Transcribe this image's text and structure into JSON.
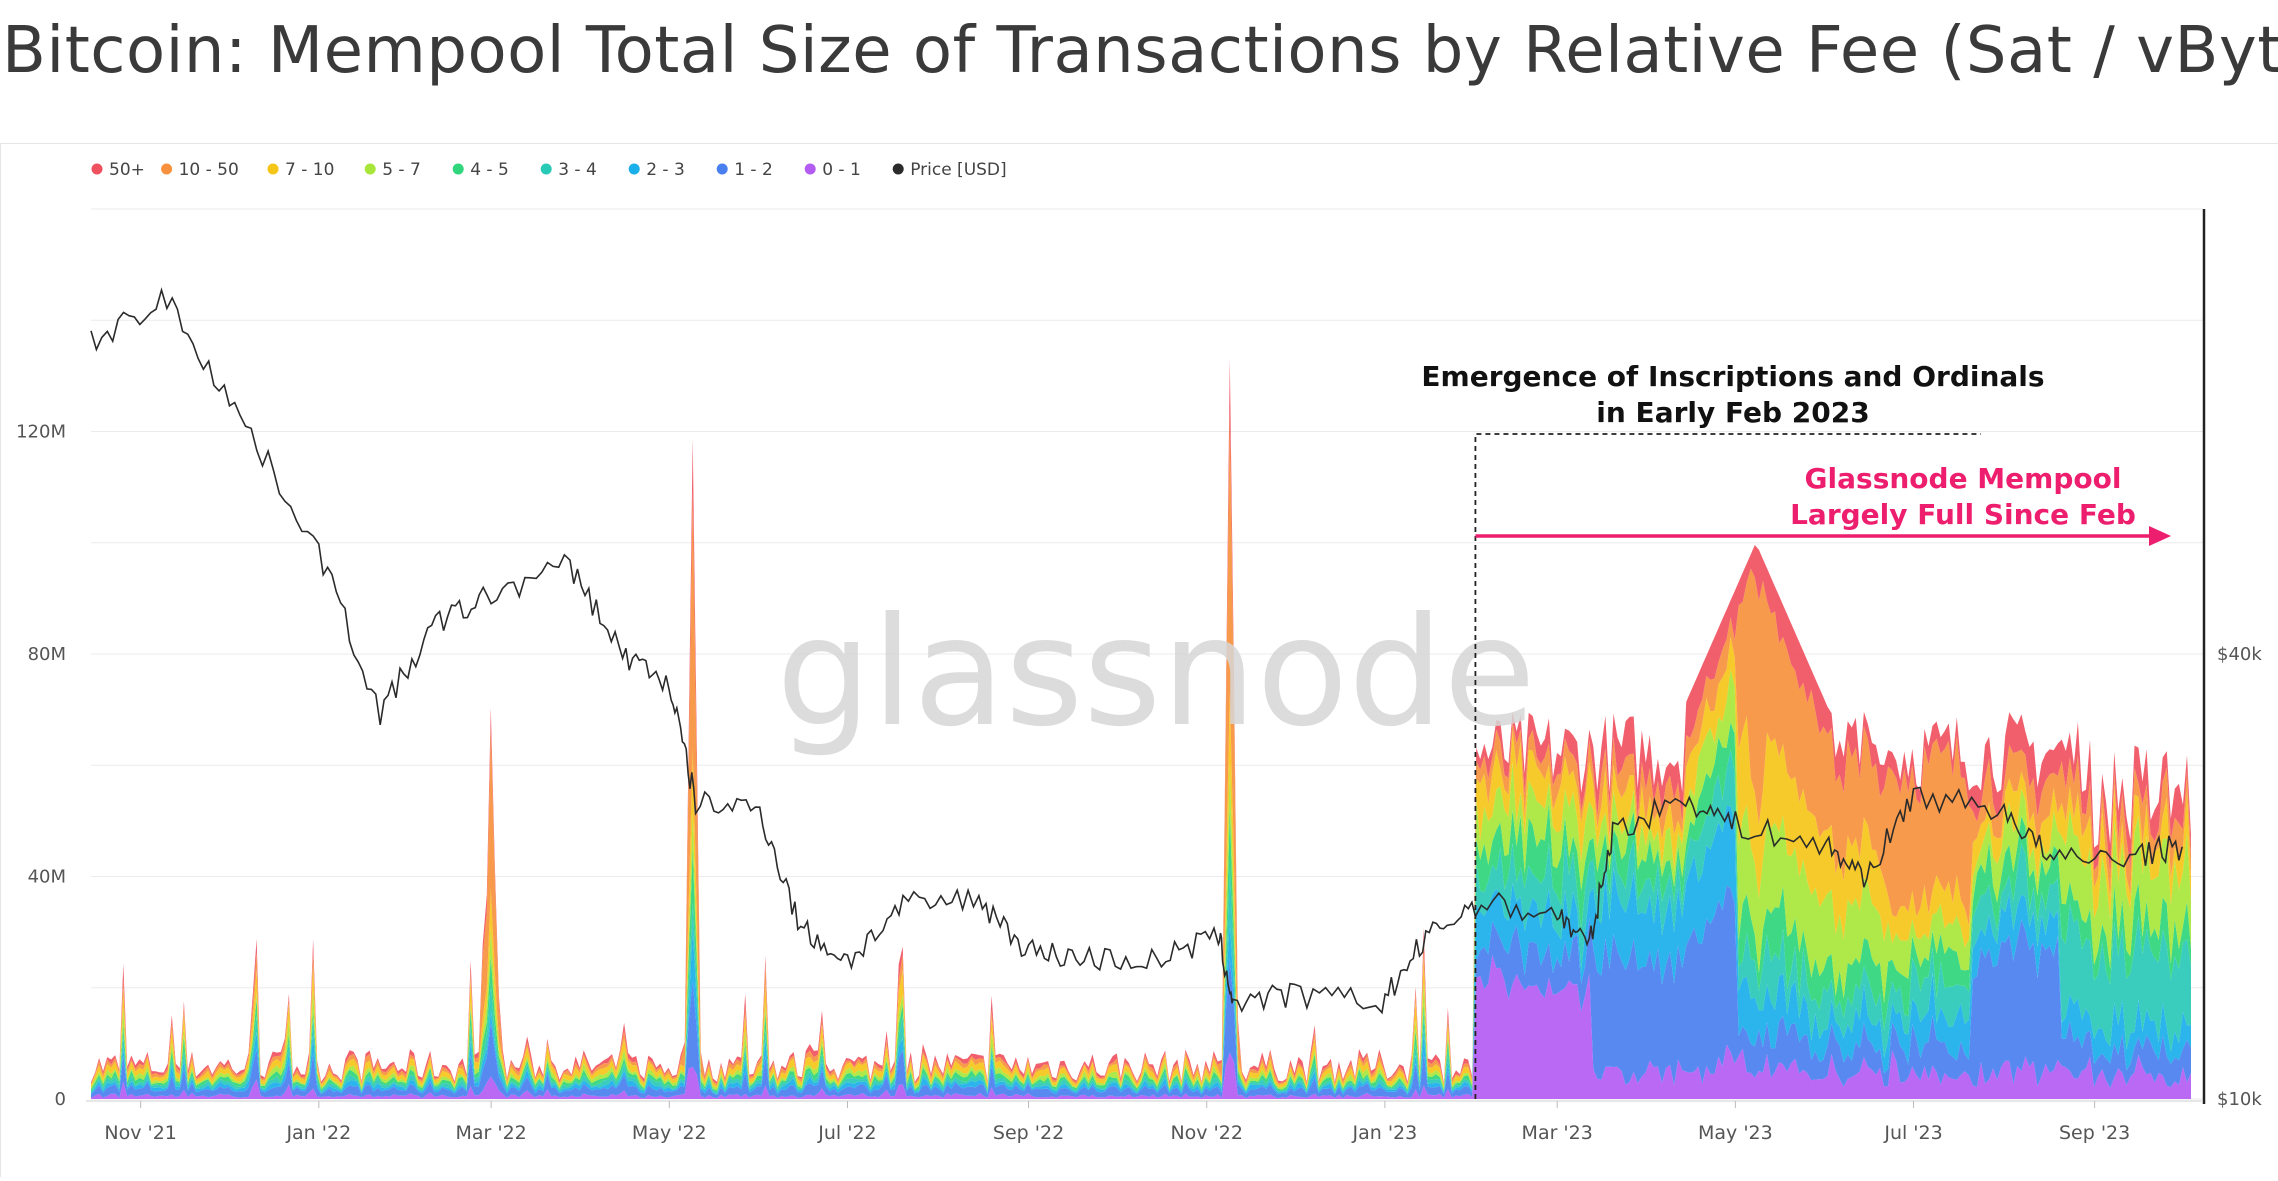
{
  "page_title": "Bitcoin: Mempool Total Size of Transactions by Relative Fee (Sat / vByte)",
  "watermark": "glassnode",
  "chart_data": {
    "type": "area",
    "stacked": true,
    "title": "Bitcoin: Mempool Total Size of Transactions by Relative Fee (Sat / vByte)",
    "xlabel": "",
    "ylabel": "",
    "x_ticks": [
      "Nov '21",
      "Jan '22",
      "Mar '22",
      "May '22",
      "Jul '22",
      "Sep '22",
      "Nov '22",
      "Jan '23",
      "Mar '23",
      "May '23",
      "Jul '23",
      "Sep '23"
    ],
    "y_left_ticks": [
      "0",
      "40M",
      "80M",
      "120M"
    ],
    "y_left_values": [
      0,
      40000000,
      80000000,
      120000000
    ],
    "y_right_ticks": [
      "$10k",
      "$40k"
    ],
    "y_right_values": [
      10000,
      40000
    ],
    "ylim_left": [
      0,
      160000000
    ],
    "ylim_right": [
      10000,
      70000
    ],
    "grid": true,
    "legend_position": "top-left",
    "legend": [
      {
        "label": "50+",
        "color": "#f0515f"
      },
      {
        "label": "10 - 50",
        "color": "#f7913d"
      },
      {
        "label": "7 - 10",
        "color": "#f5c518"
      },
      {
        "label": "5 - 7",
        "color": "#a8e63a"
      },
      {
        "label": "4 - 5",
        "color": "#2fd67b"
      },
      {
        "label": "3 - 4",
        "color": "#29c9b8"
      },
      {
        "label": "2 - 3",
        "color": "#1aaeea"
      },
      {
        "label": "1 - 2",
        "color": "#4a7ff0"
      },
      {
        "label": "0 - 1",
        "color": "#b35cf2"
      },
      {
        "label": "Price [USD]",
        "color": "#2b2b2b"
      }
    ],
    "price_series": {
      "name": "Price [USD]",
      "x": [
        "2021-10-15",
        "2021-11-10",
        "2021-12-05",
        "2022-01-01",
        "2022-01-22",
        "2022-02-10",
        "2022-03-01",
        "2022-03-28",
        "2022-04-15",
        "2022-05-01",
        "2022-05-10",
        "2022-06-01",
        "2022-06-15",
        "2022-07-01",
        "2022-07-20",
        "2022-08-15",
        "2022-09-01",
        "2022-09-20",
        "2022-10-15",
        "2022-11-05",
        "2022-11-10",
        "2022-12-01",
        "2022-12-31",
        "2023-01-15",
        "2023-02-01",
        "2023-03-01",
        "2023-03-12",
        "2023-03-20",
        "2023-04-14",
        "2023-05-01",
        "2023-06-01",
        "2023-06-15",
        "2023-07-01",
        "2023-08-01",
        "2023-08-18",
        "2023-09-15",
        "2023-10-01"
      ],
      "y": [
        61000,
        64000,
        56000,
        47000,
        36000,
        42000,
        44000,
        46000,
        40000,
        38000,
        30000,
        29500,
        21500,
        19300,
        23000,
        23500,
        20000,
        19500,
        19300,
        21000,
        16500,
        17000,
        16500,
        20800,
        23200,
        22500,
        20300,
        28000,
        30300,
        28500,
        27000,
        25000,
        30500,
        29500,
        26000,
        26500,
        27000
      ]
    },
    "mempool_annotations": [
      {
        "date": "2022-05-09",
        "label": "spike",
        "total_size": 126000000,
        "band": "10 - 50"
      },
      {
        "date": "2022-11-09",
        "label": "spike",
        "total_size": 144000000,
        "band": "10 - 50"
      },
      {
        "date": "2022-03-01",
        "label": "spike",
        "total_size": 77000000,
        "band": "10 - 50"
      },
      {
        "date": "2023-05-08",
        "label": "peak",
        "total_size": 100000000,
        "band": "10 - 50"
      }
    ],
    "series": [
      {
        "name": "50+",
        "color": "#f0515f"
      },
      {
        "name": "10 - 50",
        "color": "#f7913d"
      },
      {
        "name": "7 - 10",
        "color": "#f5c518"
      },
      {
        "name": "5 - 7",
        "color": "#a8e63a"
      },
      {
        "name": "4 - 5",
        "color": "#2fd67b"
      },
      {
        "name": "3 - 4",
        "color": "#29c9b8"
      },
      {
        "name": "2 - 3",
        "color": "#1aaeea"
      },
      {
        "name": "1 - 2",
        "color": "#4a7ff0"
      },
      {
        "name": "0 - 1",
        "color": "#b35cf2"
      }
    ],
    "annotations": [
      {
        "text": "Emergence of Inscriptions and Ordinals",
        "color": "#111111"
      },
      {
        "text": "in Early Feb 2023",
        "color": "#111111"
      },
      {
        "text": "Glassnode Mempool",
        "color": "#ee1e6e"
      },
      {
        "text": "Largely Full Since Feb",
        "color": "#ee1e6e"
      }
    ]
  }
}
